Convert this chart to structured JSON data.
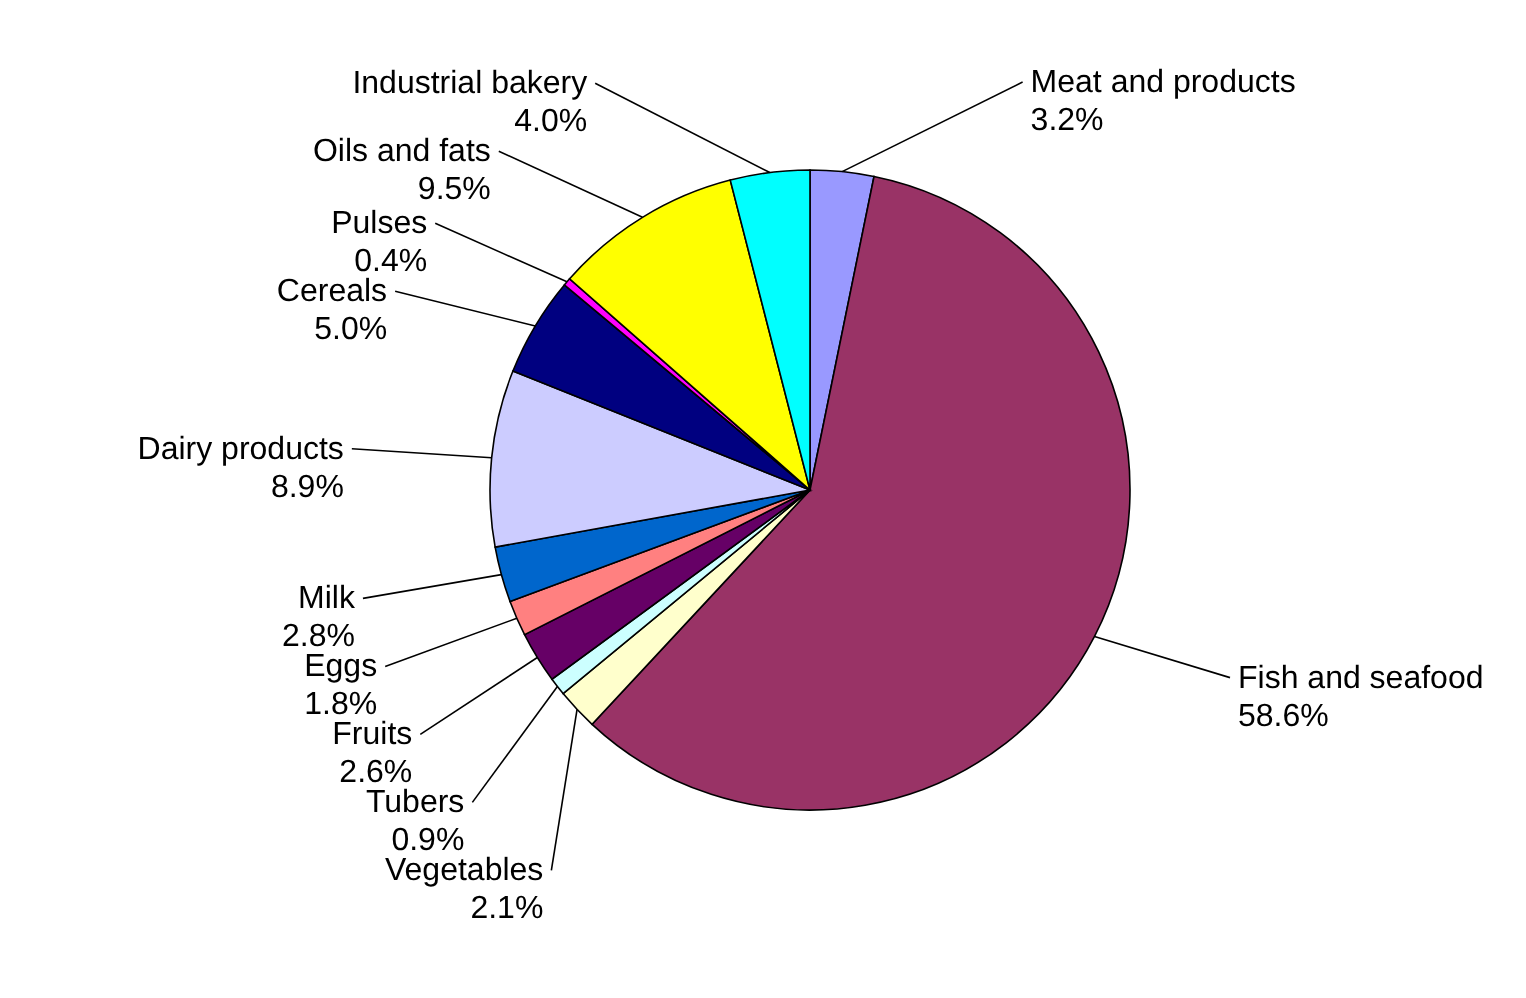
{
  "chart_data": {
    "type": "pie",
    "categories": [
      "Meat and products",
      "Fish and seafood",
      "Vegetables",
      "Tubers",
      "Fruits",
      "Eggs",
      "Milk",
      "Dairy products",
      "Cereals",
      "Pulses",
      "Oils and fats",
      "Industrial bakery"
    ],
    "values": [
      3.2,
      58.6,
      2.1,
      0.9,
      2.6,
      1.8,
      2.8,
      8.9,
      5.0,
      0.4,
      9.5,
      4.0
    ],
    "value_labels": [
      "3.2%",
      "58.6%",
      "2.1%",
      "0.9%",
      "2.6%",
      "1.8%",
      "2.8%",
      "8.9%",
      "5.0%",
      "0.4%",
      "9.5%",
      "4.0%"
    ],
    "colors": [
      "#9999ff",
      "#993366",
      "#ffffcc",
      "#ccffff",
      "#660066",
      "#ff8080",
      "#0066cc",
      "#ccccff",
      "#000080",
      "#ff00ff",
      "#ffff00",
      "#00ffff"
    ]
  }
}
